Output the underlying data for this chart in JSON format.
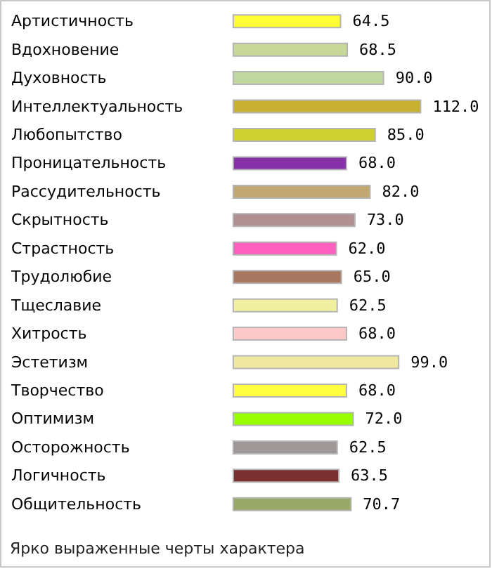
{
  "chart_data": {
    "type": "bar",
    "orientation": "horizontal",
    "data_labels": true,
    "tick_labels": "y",
    "categories": [
      "Артистичность",
      "Вдохновение",
      "Духовность",
      "Интеллектуальность",
      "Любопытство",
      "Проницательность",
      "Рассудительность",
      "Скрытность",
      "Страстность",
      "Трудолюбие",
      "Тщеславие",
      "Хитрость",
      "Эстетизм",
      "Творчество",
      "Оптимизм",
      "Осторожность",
      "Логичность",
      "Общительность"
    ],
    "values": [
      64.5,
      68.5,
      90.0,
      112.0,
      85.0,
      68.0,
      82.0,
      73.0,
      62.0,
      65.0,
      62.5,
      68.0,
      99.0,
      68.0,
      72.0,
      62.5,
      63.5,
      70.7
    ],
    "value_labels": [
      "64.5",
      "68.5",
      "90.0",
      "112.0",
      "85.0",
      "68.0",
      "82.0",
      "73.0",
      "62.0",
      "65.0",
      "62.5",
      "68.0",
      "99.0",
      "68.0",
      "72.0",
      "62.5",
      "63.5",
      "70.7"
    ],
    "colors": [
      "#ffff33",
      "#c8d898",
      "#c0d8a0",
      "#c8b030",
      "#d0d030",
      "#8830a8",
      "#c0a870",
      "#b09090",
      "#ff60c0",
      "#a87860",
      "#f0f0a0",
      "#ffc8c8",
      "#f0e8a0",
      "#ffff40",
      "#99ff00",
      "#a09898",
      "#7a3030",
      "#98a868"
    ],
    "annotations": [
      "Ярко выраженные черты характера"
    ]
  }
}
